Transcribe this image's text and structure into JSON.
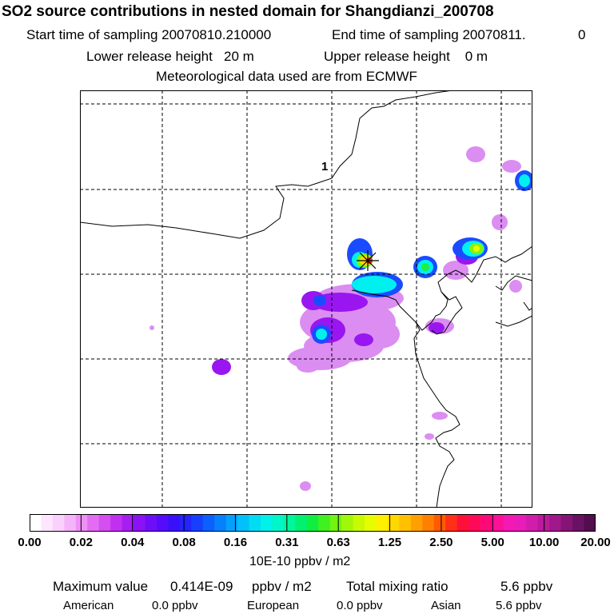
{
  "header": {
    "title": "SO2 source contributions in nested domain for Shangdianzi_200708",
    "start_label": "Start time of sampling 20070810.210000",
    "end_label": "End time of sampling 20070811.",
    "end_suffix": "0",
    "lower_release": "Lower release height   20 m",
    "upper_release": "Upper release height    0 m",
    "met_data": "Meteorological data used are from ECMWF"
  },
  "map": {
    "marker_label": "1",
    "station_marker_icon": "asterisk-icon"
  },
  "colorbar": {
    "units": "10E-10 ppbv / m2",
    "tick_labels": [
      "0.00",
      "0.02",
      "0.04",
      "0.08",
      "0.16",
      "0.31",
      "0.63",
      "1.25",
      "2.50",
      "5.00",
      "10.00",
      "20.00"
    ],
    "colors": [
      "#ffffff",
      "#fde6fe",
      "#fad0fc",
      "#f5b4f9",
      "#ee90f6",
      "#e46cf2",
      "#d44ef0",
      "#c130f0",
      "#a61ef2",
      "#8a12f4",
      "#6e0ef8",
      "#540cfa",
      "#3a10fb",
      "#2424fd",
      "#1640fe",
      "#0c60fe",
      "#0680fd",
      "#04a0fb",
      "#02c0f9",
      "#00dcf4",
      "#00f0ea",
      "#00f6c8",
      "#00f69c",
      "#00f070",
      "#10ee40",
      "#40f020",
      "#70f410",
      "#a0f808",
      "#c8fa04",
      "#e8fc00",
      "#fff000",
      "#ffd800",
      "#ffc000",
      "#ffa000",
      "#ff8000",
      "#ff5a00",
      "#ff3018",
      "#ff1038",
      "#ff0a58",
      "#ff0878",
      "#fc1098",
      "#f418b4",
      "#e81cb8",
      "#d21cac",
      "#ba1a9c",
      "#a0188a",
      "#861476",
      "#6a1262",
      "#520e4e"
    ]
  },
  "summary": {
    "max_label": "Maximum value",
    "max_value": "0.414E-09",
    "max_units": "ppbv / m2",
    "total_label": "Total mixing ratio",
    "total_value": "5.6 ppbv",
    "american_label": "American",
    "american_value": "0.0 ppbv",
    "european_label": "European",
    "european_value": "0.0 ppbv",
    "asian_label": "Asian",
    "asian_value": "5.6 ppbv"
  }
}
